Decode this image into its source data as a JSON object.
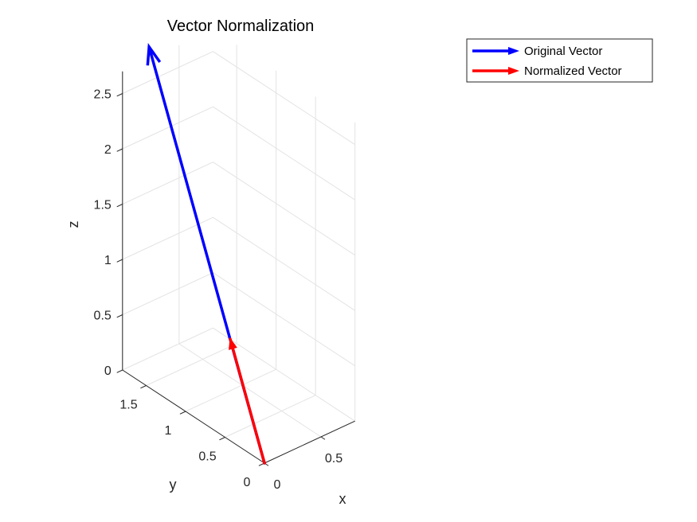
{
  "chart_data": {
    "type": "quiver3d",
    "title": "Vector Normalization",
    "xlabel": "x",
    "ylabel": "y",
    "zlabel": "z",
    "xlim": [
      0,
      0.8
    ],
    "ylim": [
      0,
      1.8
    ],
    "zlim": [
      0,
      2.7
    ],
    "xticks": [
      0,
      0.5
    ],
    "yticks": [
      0,
      0.5,
      1,
      1.5
    ],
    "zticks": [
      0,
      0.5,
      1,
      1.5,
      2,
      2.5
    ],
    "xtick_labels": [
      "0",
      "0.5"
    ],
    "ytick_labels": [
      "0",
      "0.5",
      "1",
      "1.5"
    ],
    "ztick_labels": [
      "0",
      "0.5",
      "1",
      "1.5",
      "2",
      "2.5"
    ],
    "grid": true,
    "legend_position": "top-right",
    "series": [
      {
        "name": "Original Vector",
        "color": "#0000ff",
        "origin": [
          0,
          0,
          0
        ],
        "vector": [
          0.2,
          1.75,
          2.85
        ]
      },
      {
        "name": "Normalized Vector",
        "color": "#ff0000",
        "origin": [
          0,
          0,
          0
        ],
        "vector": [
          0.06,
          0.52,
          0.85
        ]
      }
    ]
  }
}
